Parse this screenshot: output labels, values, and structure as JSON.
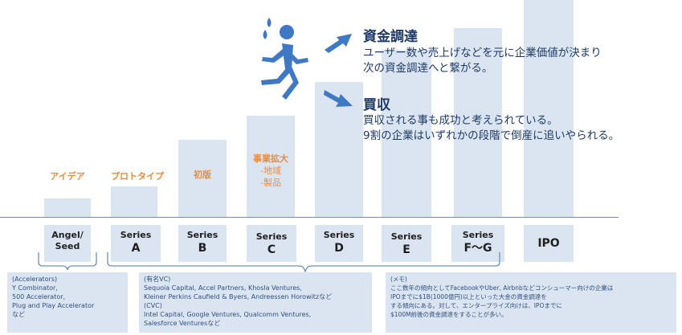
{
  "stages": {
    "idea": "アイデア",
    "prototype": "プロトタイプ",
    "first_edition": "初版",
    "expansion": "事業拡大",
    "expansion_sub1": "-地域",
    "expansion_sub2": "-製品"
  },
  "series": {
    "angel_l1": "Angel/",
    "angel_l2": "Seed",
    "a_l1": "Series",
    "a_l2": "A",
    "b_l1": "Series",
    "b_l2": "B",
    "c_l1": "Series",
    "c_l2": "C",
    "d_l1": "Series",
    "d_l2": "D",
    "e_l1": "Series",
    "e_l2": "E",
    "fg_l1": "Series",
    "fg_l2": "F〜G",
    "ipo": "IPO"
  },
  "outcomes": {
    "funding_title": "資金調達",
    "funding_line1": "ユーザー数や売上げなどを元に企業価値が決まり",
    "funding_line2": "次の資金調達へと繋がる。",
    "acquisition_title": "買収",
    "acquisition_line1": "買収される事も成功と考えられている。",
    "acquisition_line2": "9割の企業はいずれかの段階で倒産に追いやられる。"
  },
  "notes": {
    "accelerators": [
      "(Accelerators)",
      "Y Combinator,",
      "500 Accelerator,",
      "Plug and Play Accelerator",
      "など"
    ],
    "vc": [
      "(有名VC)",
      "Sequoia Capital, Accel Partners, Khosla Ventures,",
      "Kleiner Perkins Caufield & Byers, Andreessen Horowitzなど",
      "(CVC)",
      "Intel Capital, Google Ventures, Qualcomm Ventures,",
      "Salesforce Venturesなど"
    ],
    "memo": [
      "(メモ)",
      "ここ数年の傾向としてFacebookやUber, Airbnbなどコンシューマー向けの企業は",
      "IPOまでに$1B(1000億円)以上といった大金の資金調達を",
      "する傾向にある。対して、エンタープライズ向けは、IPOまでに",
      "$100M前後の資金調達をすることが多い。"
    ]
  },
  "colors": {
    "column": "#dbe5f2",
    "stage_label": "#ed8b3a",
    "runner": "#3f78c4",
    "text_dark": "#1e3a66",
    "bracket": "#6f8fb8"
  },
  "icons": [
    "runner-icon",
    "sweat-drops-icon",
    "arrow-right-icon"
  ]
}
